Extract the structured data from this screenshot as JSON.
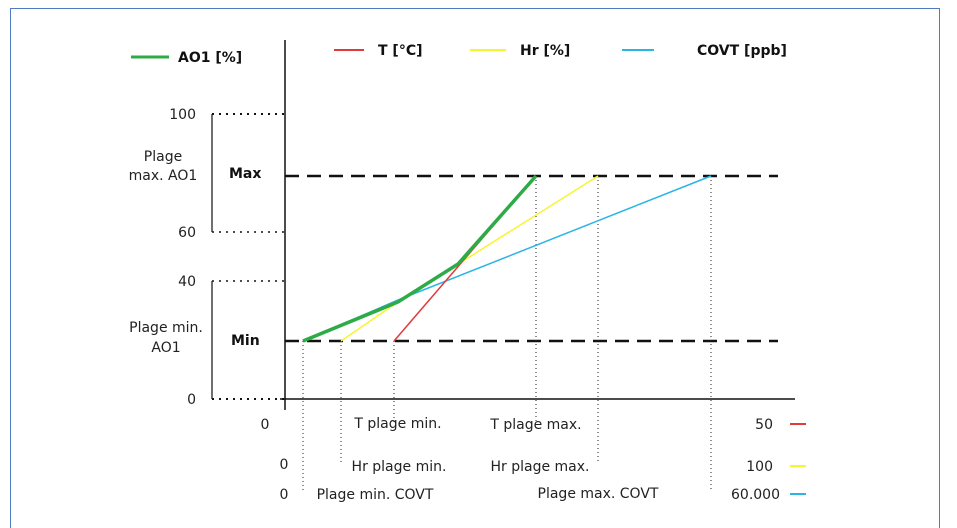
{
  "legend": {
    "ao1": {
      "label": "AO1 [%]",
      "color": "#2eab46"
    },
    "t": {
      "label": "T [°C]",
      "color": "#e03a3a"
    },
    "hr": {
      "label": "Hr [%]",
      "color": "#f5f532"
    },
    "covt": {
      "label": "COVT [ppb]",
      "color": "#2bb5e6"
    }
  },
  "y_ticks": {
    "y100": "100",
    "y60": "60",
    "y40": "40",
    "y0": "0"
  },
  "range_labels": {
    "max_range_line1": "Plage",
    "max_range_line2": "max. AO1",
    "min_range_line1": "Plage min.",
    "min_range_line2": "AO1",
    "max": "Max",
    "min": "Min"
  },
  "x_axis": {
    "row1": {
      "start": "0",
      "min": "T plage min.",
      "max": "T plage max.",
      "end": "50"
    },
    "row2": {
      "start": "0",
      "min": "Hr plage min.",
      "max": "Hr plage max.",
      "end": "100"
    },
    "row3": {
      "start": "0",
      "min": "Plage min. COVT",
      "max": "Plage max. COVT",
      "end": "60.000"
    }
  }
}
